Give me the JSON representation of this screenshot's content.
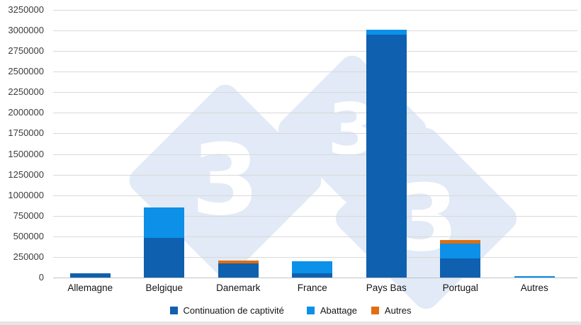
{
  "chart_data": {
    "type": "bar",
    "stacked": true,
    "title": "",
    "xlabel": "",
    "ylabel": "",
    "grid": true,
    "legend_position": "bottom",
    "ylim": [
      0,
      3250000
    ],
    "y_ticks": [
      0,
      250000,
      500000,
      750000,
      1000000,
      1250000,
      1500000,
      1750000,
      2000000,
      2250000,
      2500000,
      2750000,
      3000000,
      3250000
    ],
    "categories": [
      "Allemagne",
      "Belgique",
      "Danemark",
      "France",
      "Pays Bas",
      "Portugal",
      "Autres"
    ],
    "series": [
      {
        "name": "Continuation de captivité",
        "color": "#0F60AE",
        "values": [
          50000,
          480000,
          170000,
          50000,
          2950000,
          230000,
          0
        ]
      },
      {
        "name": "Abattage",
        "color": "#0C90E8",
        "values": [
          0,
          375000,
          0,
          150000,
          60000,
          185000,
          20000
        ]
      },
      {
        "name": "Autres",
        "color": "#E06E10",
        "values": [
          0,
          0,
          40000,
          0,
          0,
          40000,
          0
        ]
      }
    ],
    "totals": [
      50000,
      855000,
      210000,
      200000,
      3010000,
      455000,
      20000
    ]
  },
  "watermark": {
    "glyph": "3",
    "diamond_color": "#E1EAF6",
    "glyph_color": "#FFFFFF"
  },
  "colors": {
    "gridline": "#D9D9D9",
    "axis_line": "#C3C3C3",
    "y_label_text": "#3C3C3C",
    "x_label_text": "#141414",
    "bottom_strip": "#E6E6E6"
  }
}
